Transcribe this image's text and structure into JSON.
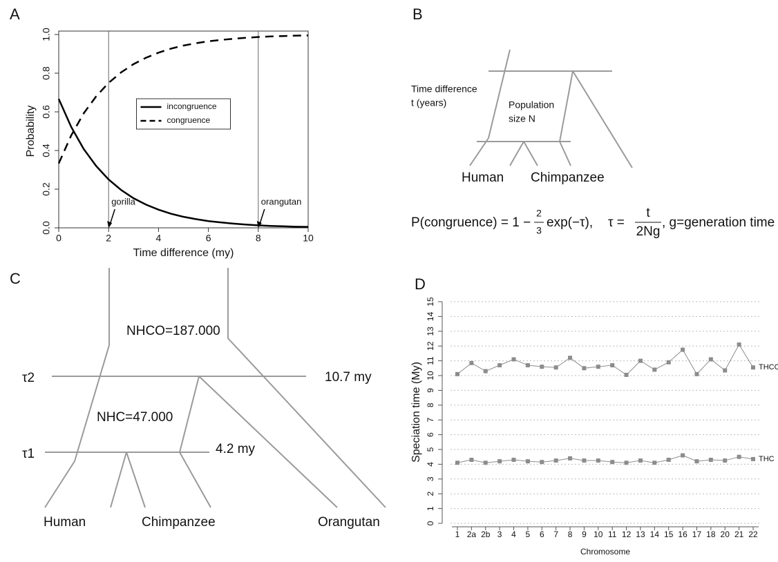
{
  "chart_data": [
    {
      "type": "line",
      "panel": "A",
      "xlabel": "Time difference (my)",
      "ylabel": "Probability",
      "x": [
        0,
        0.5,
        1,
        1.5,
        2,
        2.5,
        3,
        3.5,
        4,
        4.5,
        5,
        5.5,
        6,
        6.5,
        7,
        7.5,
        8,
        8.5,
        9,
        9.5,
        10
      ],
      "series": [
        {
          "name": "incongruence",
          "color": "#000000",
          "dash": false,
          "values": [
            0.667,
            0.522,
            0.408,
            0.32,
            0.25,
            0.196,
            0.153,
            0.12,
            0.094,
            0.073,
            0.057,
            0.045,
            0.035,
            0.028,
            0.022,
            0.017,
            0.013,
            0.01,
            0.008,
            0.006,
            0.005
          ]
        },
        {
          "name": "congruence",
          "color": "#000000",
          "dash": true,
          "values": [
            0.333,
            0.478,
            0.592,
            0.68,
            0.75,
            0.804,
            0.847,
            0.88,
            0.906,
            0.927,
            0.943,
            0.955,
            0.965,
            0.972,
            0.978,
            0.983,
            0.987,
            0.99,
            0.992,
            0.994,
            0.995
          ]
        }
      ],
      "annotations": [
        {
          "x": 2,
          "label": "gorilla"
        },
        {
          "x": 8,
          "label": "orangutan"
        }
      ],
      "xlim": [
        0,
        10
      ],
      "xticks": [
        0,
        2,
        4,
        6,
        8,
        10
      ],
      "ylim": [
        0,
        1
      ],
      "yticks": [
        {
          "value": 0,
          "label": "0.0"
        },
        {
          "value": 0.2,
          "label": "0.2"
        },
        {
          "value": 0.4,
          "label": "0.4"
        },
        {
          "value": 0.6,
          "label": "0.6"
        },
        {
          "value": 0.8,
          "label": "0.8"
        },
        {
          "value": 1,
          "label": "1.0"
        }
      ],
      "legend": "center"
    },
    {
      "type": "line",
      "panel": "D",
      "xlabel": "Chromosome",
      "ylabel": "Speciation time (My)",
      "categories": [
        "1",
        "2a",
        "2b",
        "3",
        "4",
        "5",
        "6",
        "7",
        "8",
        "9",
        "10",
        "11",
        "12",
        "13",
        "14",
        "15",
        "16",
        "17",
        "18",
        "20",
        "21",
        "22"
      ],
      "series": [
        {
          "name": "THCO",
          "color": "#8c8c8c",
          "values": [
            10.1,
            10.85,
            10.3,
            10.7,
            11.1,
            10.7,
            10.6,
            10.55,
            11.2,
            10.5,
            10.6,
            10.7,
            10.05,
            11.0,
            10.4,
            10.9,
            11.75,
            10.1,
            11.1,
            10.35,
            12.1,
            10.55
          ]
        },
        {
          "name": "THC",
          "color": "#8c8c8c",
          "values": [
            4.1,
            4.3,
            4.1,
            4.2,
            4.3,
            4.2,
            4.15,
            4.25,
            4.4,
            4.25,
            4.25,
            4.15,
            4.1,
            4.25,
            4.1,
            4.3,
            4.6,
            4.2,
            4.3,
            4.25,
            4.5,
            4.35
          ]
        }
      ],
      "ylim": [
        0,
        15
      ],
      "yticks": [
        0,
        1,
        2,
        3,
        4,
        5,
        6,
        7,
        8,
        9,
        10,
        11,
        12,
        13,
        14,
        15
      ],
      "grid": true
    }
  ],
  "diagram_b": {
    "panel": "B",
    "time_label": "Time difference",
    "time_unit": "t (years)",
    "pop_label": "Population",
    "pop_size": "size N",
    "left_leaf": "Human",
    "right_leaf": "Chimpanzee",
    "formula": {
      "lhs": "P(congruence) = 1 −",
      "num": "2",
      "den": "3",
      "exp": "exp(−τ),",
      "tau": "τ =",
      "tau_num": "t",
      "tau_den": "2Ng",
      "note": ", g=generation time"
    }
  },
  "diagram_c": {
    "panel": "C",
    "n_hco": "NHCO=187.000",
    "n_hc": "NHC=47.000",
    "tau2": "τ2",
    "tau1": "τ1",
    "t2": "10.7 my",
    "t1": "4.2 my",
    "leaves": [
      "Human",
      "Chimpanzee",
      "Orangutan"
    ]
  }
}
